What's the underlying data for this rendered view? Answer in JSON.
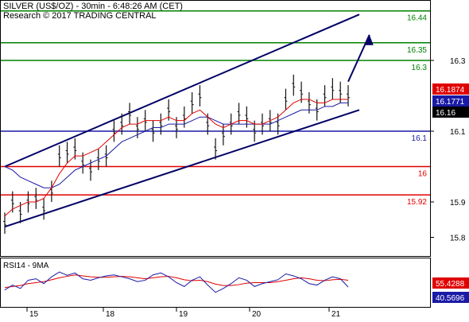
{
  "chart_data": [
    {
      "type": "line",
      "instrument": "SILVER (US$/OZ)",
      "timeframe": "30min",
      "time": "6:48:26 AM (CET)",
      "title": "SILVER (US$/OZ) - 30min - 6:48:26 AM (CET)",
      "subtitle": "Research © 2017 TRADING CENTRAL",
      "ylim": [
        15.75,
        16.5
      ],
      "y_ticks": [
        {
          "value": 16.3,
          "label": "16.3"
        },
        {
          "value": 16.1,
          "label": "16.1"
        },
        {
          "value": 15.9,
          "label": "15.9"
        },
        {
          "value": 15.8,
          "label": "15.8"
        }
      ],
      "x_ticks": [
        "15",
        "18",
        "19",
        "20",
        "21"
      ],
      "levels": [
        {
          "label": "16.44",
          "value": 16.44,
          "color": "#008000"
        },
        {
          "label": "16.35",
          "value": 16.35,
          "color": "#008000"
        },
        {
          "label": "16.3",
          "value": 16.3,
          "color": "#008000"
        },
        {
          "label": "16.1",
          "value": 16.1,
          "color": "#1a1aa6"
        },
        {
          "label": "16",
          "value": 16.0,
          "color": "#e00000"
        },
        {
          "label": "15.92",
          "value": 15.92,
          "color": "#e00000"
        }
      ],
      "price_markers": [
        {
          "label": "16.1874",
          "value": 16.1874,
          "color": "#e00000"
        },
        {
          "label": "16.1771",
          "value": 16.1771,
          "color": "#1a1aa6"
        },
        {
          "label": "16.16",
          "value": 16.16,
          "color": "#000000"
        }
      ],
      "price_series": [
        15.84,
        15.9,
        15.87,
        15.9,
        15.91,
        15.88,
        15.93,
        16.03,
        16.04,
        16.05,
        16.01,
        15.99,
        16.02,
        16.03,
        16.1,
        16.12,
        16.15,
        16.11,
        16.13,
        16.1,
        16.12,
        16.16,
        16.11,
        16.14,
        16.18,
        16.2,
        16.12,
        16.05,
        16.09,
        16.12,
        16.15,
        16.14,
        16.1,
        16.12,
        16.13,
        16.12,
        16.19,
        16.23,
        16.21,
        16.18,
        16.16,
        16.2,
        16.22,
        16.21,
        16.2
      ],
      "moving_average_red": [
        15.86,
        15.88,
        15.89,
        15.9,
        15.9,
        15.91,
        15.94,
        15.98,
        16.01,
        16.03,
        16.03,
        16.04,
        16.05,
        16.07,
        16.09,
        16.11,
        16.12,
        16.12,
        16.13,
        16.13,
        16.13,
        16.14,
        16.13,
        16.13,
        16.15,
        16.16,
        16.14,
        16.12,
        16.11,
        16.12,
        16.13,
        16.13,
        16.12,
        16.12,
        16.13,
        16.14,
        16.16,
        16.18,
        16.19,
        16.19,
        16.18,
        16.18,
        16.19,
        16.19,
        16.19
      ],
      "moving_average_blue": [
        16.0,
        15.99,
        15.97,
        15.96,
        15.95,
        15.94,
        15.94,
        15.95,
        15.97,
        15.99,
        16.0,
        16.01,
        16.02,
        16.03,
        16.05,
        16.07,
        16.08,
        16.09,
        16.1,
        16.11,
        16.11,
        16.12,
        16.12,
        16.12,
        16.13,
        16.14,
        16.14,
        16.13,
        16.12,
        16.12,
        16.12,
        16.12,
        16.12,
        16.12,
        16.12,
        16.13,
        16.14,
        16.15,
        16.16,
        16.16,
        16.16,
        16.17,
        16.17,
        16.18,
        16.18
      ],
      "channel_upper": [
        [
          0,
          16.0
        ],
        [
          44,
          16.43
        ]
      ],
      "channel_lower": [
        [
          0,
          15.83
        ],
        [
          44,
          16.16
        ]
      ],
      "arrow": {
        "from": [
          44,
          16.24
        ],
        "to": [
          45.5,
          16.35
        ]
      }
    },
    {
      "type": "line",
      "title": "RSI14 - 9MA",
      "ylim": [
        0,
        100
      ],
      "markers": [
        {
          "label": "55.4288",
          "value": 55.4288,
          "color": "#e00000"
        },
        {
          "label": "40.5696",
          "value": 40.5696,
          "color": "#1a1aa6"
        }
      ],
      "rsi": [
        35,
        45,
        38,
        55,
        58,
        48,
        62,
        72,
        65,
        70,
        58,
        55,
        60,
        64,
        66,
        62,
        58,
        52,
        55,
        66,
        70,
        62,
        50,
        42,
        55,
        62,
        45,
        30,
        38,
        48,
        60,
        55,
        42,
        48,
        52,
        56,
        68,
        64,
        58,
        48,
        45,
        55,
        62,
        58,
        41
      ],
      "ma": [
        40,
        42,
        44,
        48,
        50,
        52,
        56,
        60,
        63,
        66,
        64,
        62,
        61,
        61,
        62,
        63,
        62,
        60,
        58,
        60,
        62,
        63,
        60,
        56,
        54,
        55,
        52,
        47,
        44,
        44,
        46,
        49,
        50,
        50,
        50,
        52,
        55,
        58,
        60,
        58,
        55,
        54,
        56,
        57,
        55
      ]
    }
  ]
}
